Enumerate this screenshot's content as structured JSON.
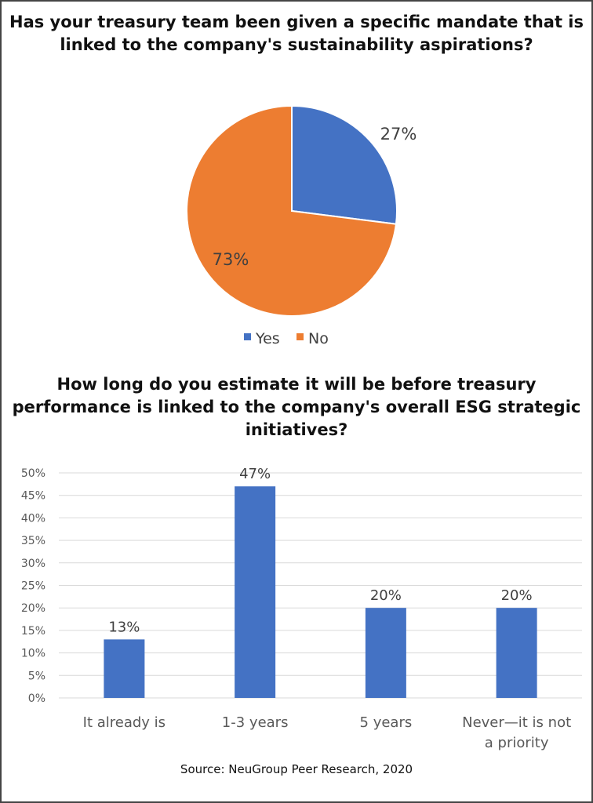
{
  "chart_data": [
    {
      "type": "pie",
      "title": "Has your treasury team been given a specific mandate that is linked to the company's sustainability aspirations?",
      "categories": [
        "Yes",
        "No"
      ],
      "values": [
        27,
        73
      ],
      "data_labels": [
        "27%",
        "73%"
      ],
      "colors": [
        "#4472C4",
        "#ED7D31"
      ],
      "legend": {
        "placement": "bottom",
        "entries": [
          "Yes",
          "No"
        ]
      }
    },
    {
      "type": "bar",
      "title": "How long do you estimate it will be before treasury performance is linked to the company's overall ESG strategic initiatives?",
      "categories": [
        "It already is",
        "1-3 years",
        "5 years",
        "Never—it is not a priority"
      ],
      "values": [
        13,
        47,
        20,
        20
      ],
      "data_labels": [
        "13%",
        "47%",
        "20%",
        "20%"
      ],
      "ylim": [
        0,
        50
      ],
      "yticks": [
        "0%",
        "5%",
        "10%",
        "15%",
        "20%",
        "25%",
        "30%",
        "35%",
        "40%",
        "45%",
        "50%"
      ],
      "grid": true,
      "color": "#4472C4",
      "xlabel": "",
      "ylabel": ""
    }
  ],
  "source": "Source: NeuGroup Peer Research, 2020"
}
